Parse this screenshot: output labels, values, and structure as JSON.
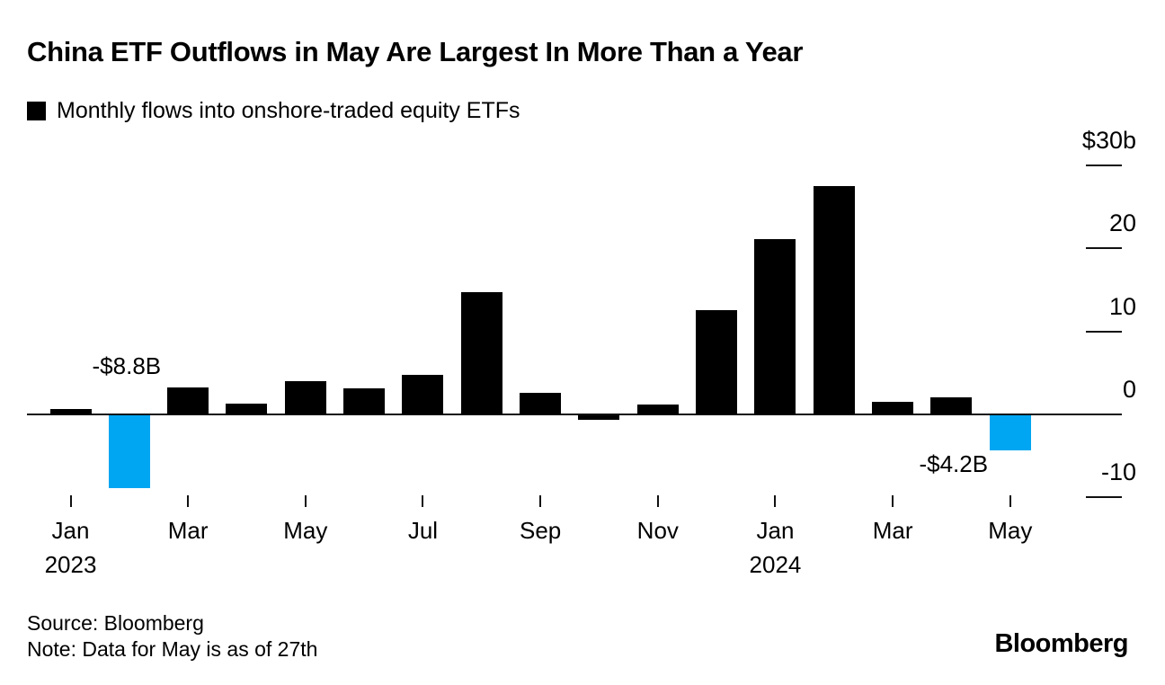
{
  "header": {
    "title": "China ETF Outflows in May Are Largest In More Than a Year",
    "legend": "Monthly flows into onshore-traded equity ETFs"
  },
  "chart_data": {
    "type": "bar",
    "title": "China ETF Outflows in May Are Largest In More Than a Year",
    "series_name": "Monthly flows into onshore-traded equity ETFs",
    "unit": "USD billions",
    "categories": [
      "Jan 2023",
      "Feb 2023",
      "Mar 2023",
      "Apr 2023",
      "May 2023",
      "Jun 2023",
      "Jul 2023",
      "Aug 2023",
      "Sep 2023",
      "Oct 2023",
      "Nov 2023",
      "Dec 2023",
      "Jan 2024",
      "Feb 2024",
      "Mar 2024",
      "Apr 2024",
      "May 2024"
    ],
    "values": [
      0.6,
      -8.8,
      3.2,
      1.3,
      4.0,
      3.1,
      4.8,
      14.7,
      2.6,
      -0.5,
      1.2,
      12.6,
      21.1,
      27.5,
      1.5,
      2.1,
      -4.2
    ],
    "highlighted_indices": [
      1,
      16
    ],
    "bar_color": "#000000",
    "highlight_color": "#00A6F2",
    "ylim": [
      -10,
      30
    ],
    "y_ticks": [
      {
        "value": 30,
        "label": "$30b"
      },
      {
        "value": 20,
        "label": "20"
      },
      {
        "value": 10,
        "label": "10"
      },
      {
        "value": 0,
        "label": "0"
      },
      {
        "value": -10,
        "label": "-10"
      }
    ],
    "x_ticks": [
      {
        "index": 0,
        "label": "Jan",
        "year": "2023"
      },
      {
        "index": 2,
        "label": "Mar"
      },
      {
        "index": 4,
        "label": "May"
      },
      {
        "index": 6,
        "label": "Jul"
      },
      {
        "index": 8,
        "label": "Sep"
      },
      {
        "index": 10,
        "label": "Nov"
      },
      {
        "index": 12,
        "label": "Jan",
        "year": "2024"
      },
      {
        "index": 14,
        "label": "Mar"
      },
      {
        "index": 16,
        "label": "May"
      }
    ],
    "annotations": [
      {
        "text": "-$8.8B",
        "index": 1
      },
      {
        "text": "-$4.2B",
        "index": 16
      }
    ],
    "grid": false,
    "legend_position": "top-left"
  },
  "footer": {
    "source": "Source: Bloomberg",
    "note": "Note: Data for May is as of 27th",
    "brand": "Bloomberg"
  }
}
